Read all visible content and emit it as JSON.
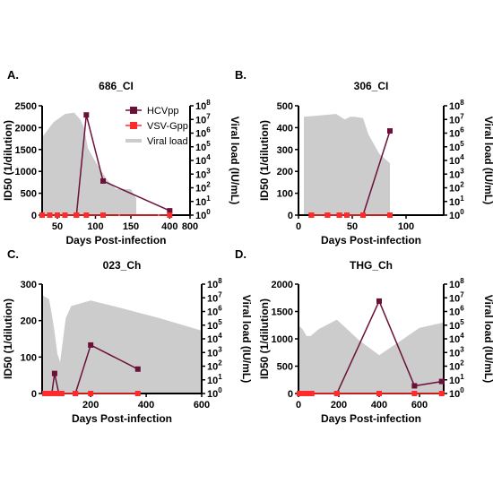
{
  "colors": {
    "hcv": "#6b1139",
    "vsv": "#ff2a2a",
    "viral": "#cccccc",
    "axis": "#000000"
  },
  "legend": {
    "items": [
      {
        "label": "HCVpp",
        "marker": "square",
        "color": "#6b1139"
      },
      {
        "label": "VSV-Gpp",
        "marker": "square",
        "color": "#ff2a2a"
      },
      {
        "label": "Viral load",
        "marker": "line",
        "color": "#cccccc"
      }
    ]
  },
  "chart_data": [
    {
      "type": "line",
      "panel_letter": "A.",
      "title": "686_CI",
      "xlabel": "Days Post-infection",
      "ylabel": "ID50 (1/dilution)",
      "y2label": "Viral load (IU/mL)",
      "x_broken": true,
      "x_segments": [
        {
          "range": [
            30,
            130
          ],
          "ticks": [
            50,
            100
          ]
        },
        {
          "range": [
            130,
            200
          ],
          "ticks": [
            150
          ]
        },
        {
          "range": [
            200,
            800
          ],
          "ticks": [
            400,
            800
          ]
        }
      ],
      "ylim": [
        0,
        2500
      ],
      "yticks": [
        0,
        500,
        1000,
        1500,
        2000,
        2500
      ],
      "y2_log_range": [
        0,
        8
      ],
      "viral_load": {
        "x": [
          30,
          45,
          60,
          72,
          80,
          85,
          90,
          100,
          115,
          127,
          150,
          160
        ],
        "log10": [
          5.7,
          6.8,
          7.4,
          7.5,
          7.0,
          6.4,
          4.9,
          3.9,
          2.6,
          1.9,
          1.9,
          1.2
        ]
      },
      "series": [
        {
          "name": "HCVpp",
          "x": [
            30,
            40,
            50,
            60,
            75,
            88,
            110,
            400
          ],
          "y": [
            0,
            0,
            0,
            0,
            0,
            2290,
            780,
            100
          ]
        },
        {
          "name": "VSV-Gpp",
          "x": [
            30,
            40,
            50,
            60,
            75,
            88,
            110,
            400
          ],
          "y": [
            0,
            0,
            0,
            0,
            0,
            0,
            0,
            0
          ]
        }
      ]
    },
    {
      "type": "line",
      "panel_letter": "B.",
      "title": "306_CI",
      "xlabel": "Days Post-infection",
      "ylabel": "ID50 (1/dilution)",
      "y2label": "Viral load (IU/mL)",
      "xlim": [
        0,
        135
      ],
      "xticks": [
        0,
        50,
        100
      ],
      "ylim": [
        0,
        500
      ],
      "yticks": [
        0,
        100,
        200,
        300,
        400,
        500
      ],
      "y2_log_range": [
        0,
        8
      ],
      "viral_load": {
        "x": [
          5,
          20,
          35,
          43,
          48,
          52,
          60,
          65,
          75,
          85
        ],
        "log10": [
          7.2,
          7.3,
          7.4,
          7.0,
          7.2,
          7.2,
          7.1,
          5.9,
          4.5,
          3.8
        ]
      },
      "series": [
        {
          "name": "HCVpp",
          "x": [
            12,
            27,
            38,
            45,
            60,
            85
          ],
          "y": [
            0,
            0,
            0,
            0,
            0,
            385
          ]
        },
        {
          "name": "VSV-Gpp",
          "x": [
            12,
            27,
            38,
            45,
            60,
            85
          ],
          "y": [
            0,
            0,
            0,
            0,
            0,
            0
          ]
        }
      ]
    },
    {
      "type": "line",
      "panel_letter": "C.",
      "title": "023_Ch",
      "xlabel": "Days Post-infection",
      "ylabel": "ID50 (1/dilution)",
      "y2label": "Viral load (IU/mL)",
      "xlim": [
        25,
        600
      ],
      "xticks": [
        200,
        400,
        600
      ],
      "ylim": [
        0,
        300
      ],
      "yticks": [
        0,
        100,
        200,
        300
      ],
      "y2_log_range": [
        0,
        8
      ],
      "viral_load": {
        "x": [
          25,
          50,
          60,
          70,
          80,
          90,
          110,
          130,
          200,
          300,
          450,
          600
        ],
        "log10": [
          7.2,
          6.9,
          5.8,
          4.5,
          2.9,
          2.3,
          5.5,
          6.4,
          6.8,
          6.3,
          5.5,
          4.6
        ]
      },
      "series": [
        {
          "name": "HCVpp",
          "x": [
            35,
            50,
            60,
            70,
            85,
            95,
            145,
            200,
            370
          ],
          "y": [
            0,
            0,
            0,
            55,
            0,
            0,
            0,
            133,
            67
          ]
        },
        {
          "name": "VSV-Gpp",
          "x": [
            35,
            50,
            60,
            70,
            85,
            95,
            145,
            200,
            370
          ],
          "y": [
            0,
            0,
            0,
            0,
            0,
            0,
            0,
            0,
            0
          ]
        }
      ]
    },
    {
      "type": "line",
      "panel_letter": "D.",
      "title": "THG_Ch",
      "xlabel": "Days Post-infection",
      "ylabel": "ID50 (1/dilution)",
      "y2label": "Viral load (IU/mL)",
      "xlim": [
        0,
        720
      ],
      "xticks": [
        0,
        200,
        400,
        600
      ],
      "ylim": [
        0,
        2000
      ],
      "yticks": [
        0,
        500,
        1000,
        1500,
        2000
      ],
      "y2_log_range": [
        0,
        8
      ],
      "viral_load": {
        "x": [
          0,
          20,
          40,
          60,
          100,
          190,
          300,
          400,
          500,
          600,
          720
        ],
        "log10": [
          5.0,
          4.7,
          4.2,
          4.2,
          4.7,
          5.4,
          3.9,
          2.8,
          3.8,
          4.8,
          5.2
        ]
      },
      "series": [
        {
          "name": "HCVpp",
          "x": [
            5,
            15,
            25,
            35,
            45,
            55,
            65,
            190,
            400,
            575,
            710
          ],
          "y": [
            0,
            0,
            0,
            0,
            0,
            0,
            0,
            0,
            1690,
            140,
            220
          ]
        },
        {
          "name": "VSV-Gpp",
          "x": [
            5,
            15,
            25,
            35,
            45,
            55,
            65,
            190,
            400,
            575,
            710
          ],
          "y": [
            0,
            0,
            0,
            0,
            0,
            0,
            0,
            0,
            0,
            0,
            0
          ]
        }
      ]
    }
  ]
}
